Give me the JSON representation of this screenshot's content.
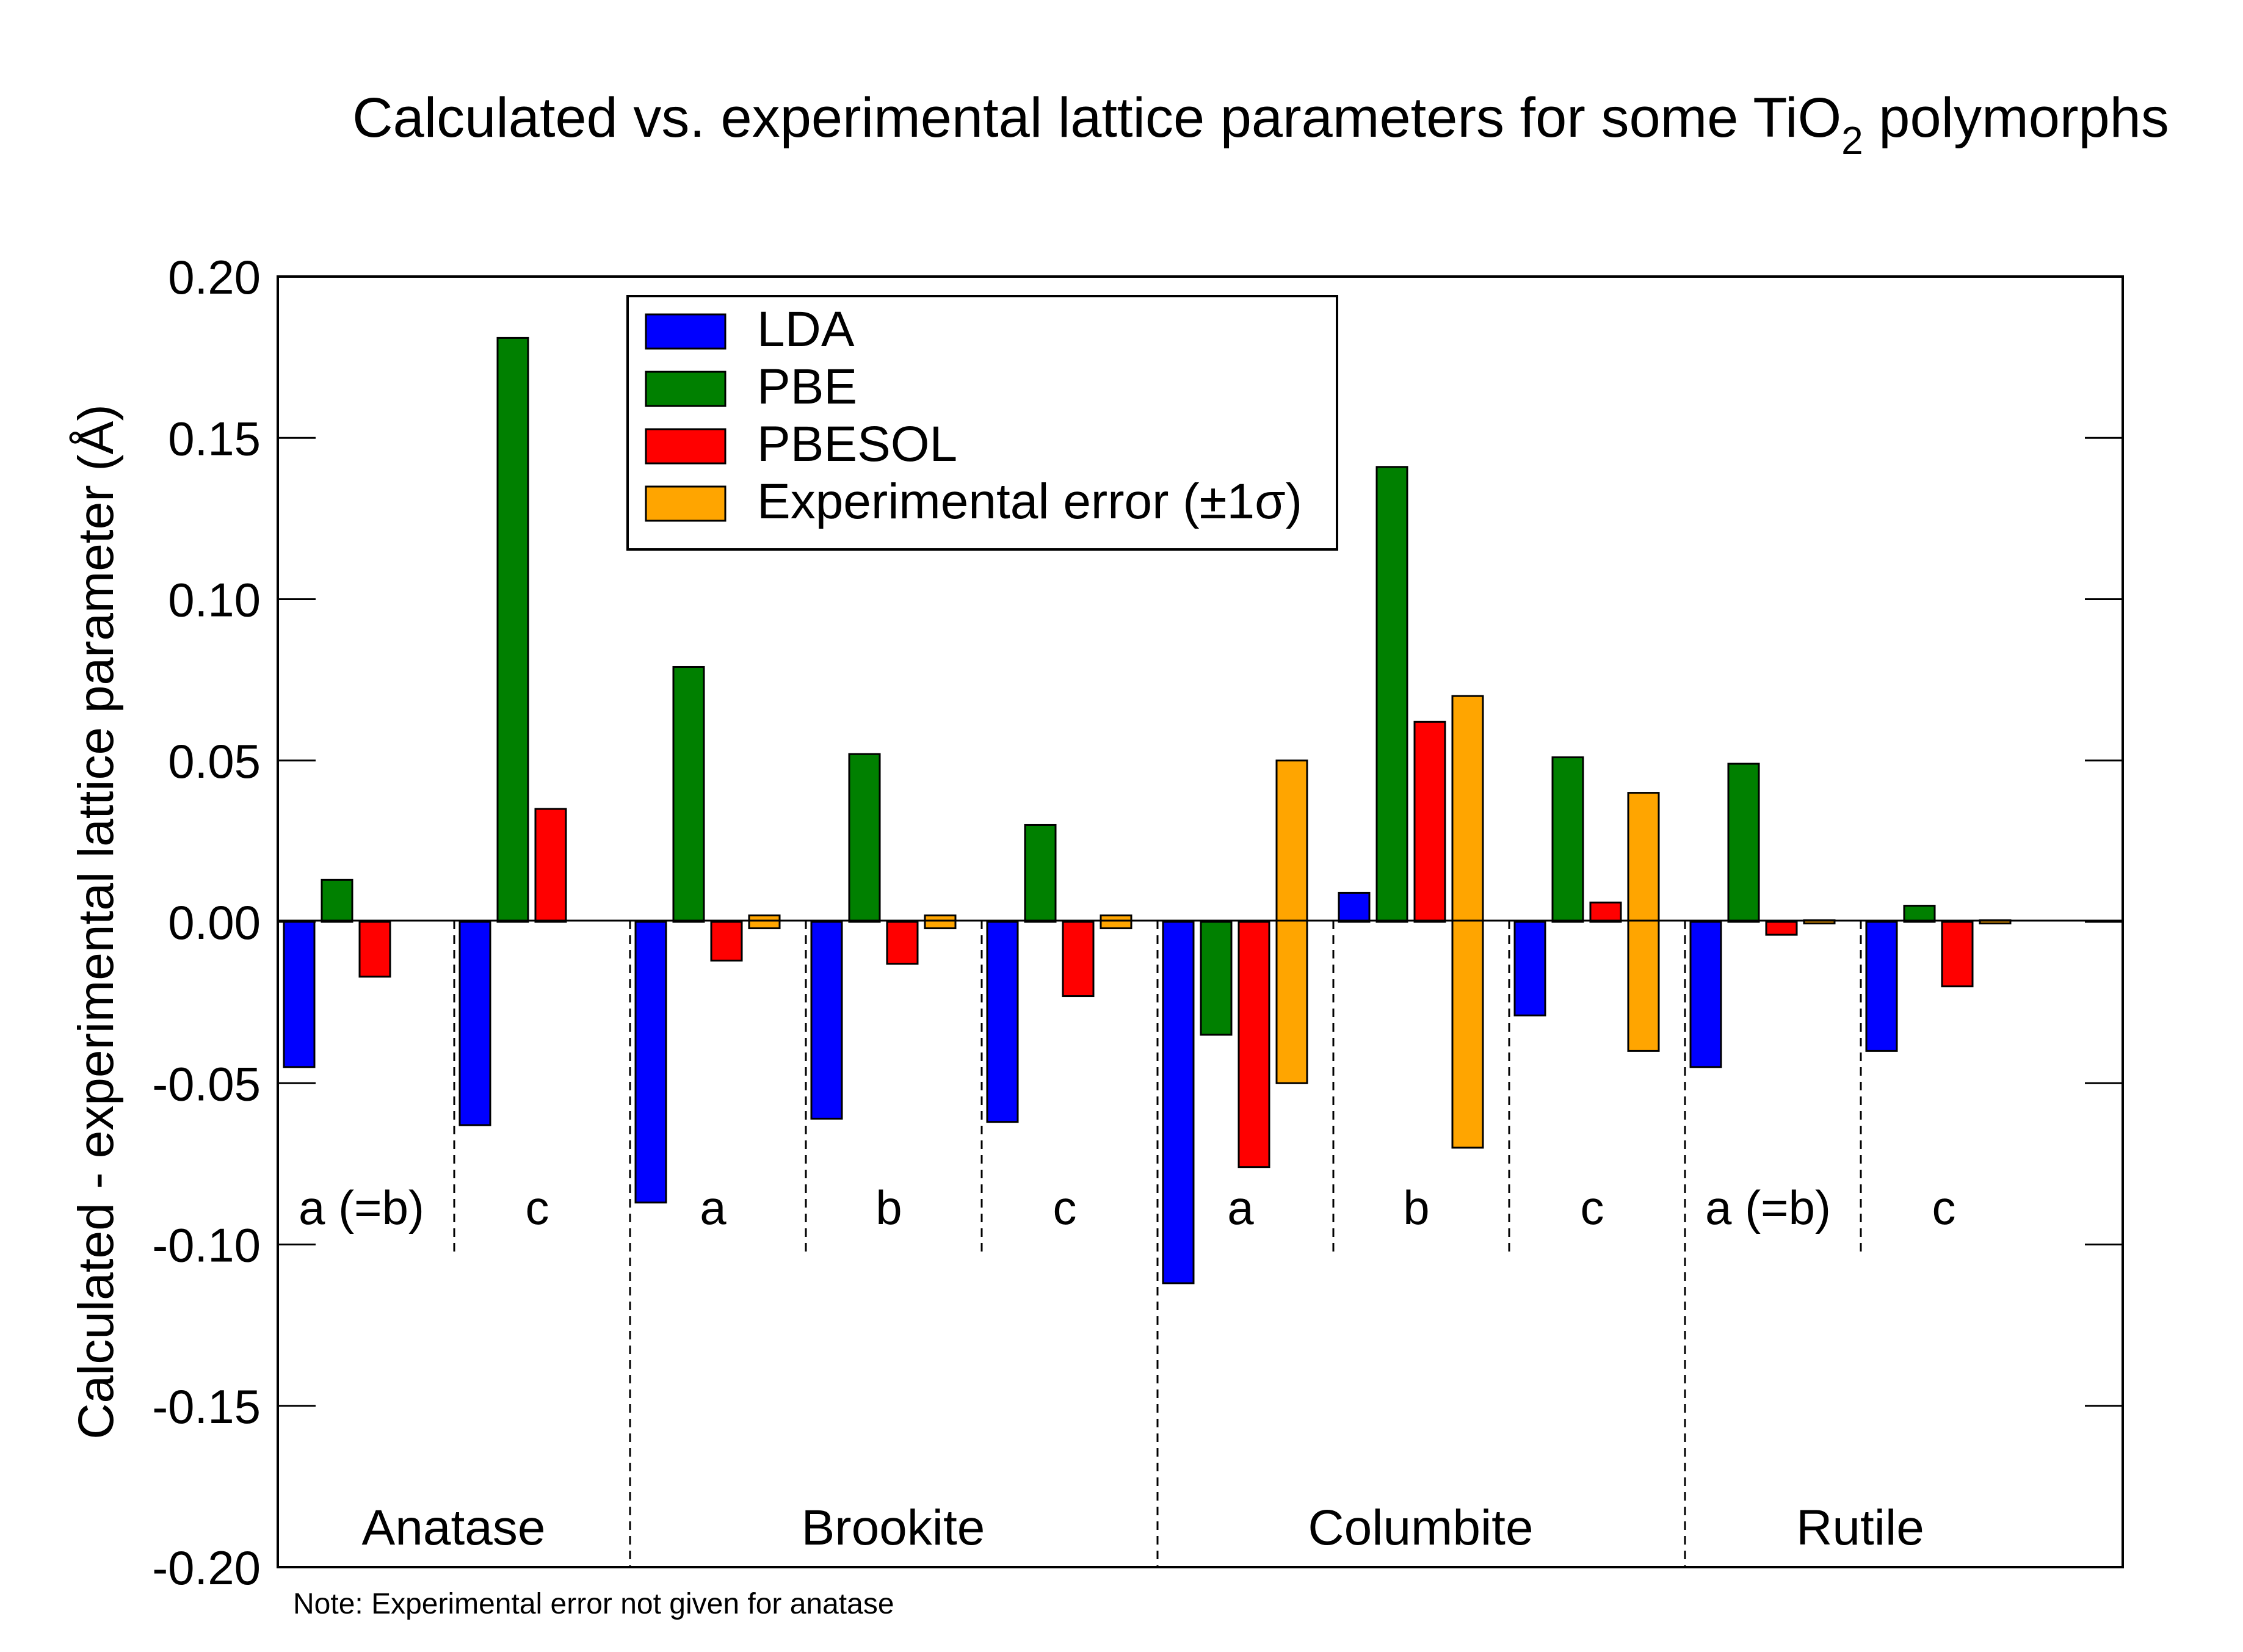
{
  "chart_data": {
    "type": "bar",
    "title_main": "Calculated vs. experimental lattice parameters for some TiO",
    "title_sub": "2",
    "title_end": " polymorphs",
    "ylabel": "Calculated - experimental lattice parameter (Å)",
    "ylim": [
      -0.2,
      0.2
    ],
    "yticks": [
      {
        "value": 0.2,
        "label": "0.20"
      },
      {
        "value": 0.15,
        "label": "0.15"
      },
      {
        "value": 0.1,
        "label": "0.10"
      },
      {
        "value": 0.05,
        "label": "0.05"
      },
      {
        "value": 0.0,
        "label": "0.00"
      },
      {
        "value": -0.05,
        "label": "-0.05"
      },
      {
        "value": -0.1,
        "label": "-0.10"
      },
      {
        "value": -0.15,
        "label": "-0.15"
      },
      {
        "value": -0.2,
        "label": "-0.20"
      }
    ],
    "series": [
      {
        "name": "LDA",
        "color": "#0000ff"
      },
      {
        "name": "PBE",
        "color": "#008000"
      },
      {
        "name": "PBESOL",
        "color": "#ff0000"
      },
      {
        "name": "Experimental error (±1σ)",
        "color": "#ffa500"
      }
    ],
    "groups": [
      {
        "name": "Anatase",
        "params": [
          {
            "label": "a (=b)",
            "values": [
              -0.045,
              0.013,
              -0.017,
              null
            ]
          },
          {
            "label": "c",
            "values": [
              -0.063,
              0.181,
              0.035,
              null
            ]
          }
        ]
      },
      {
        "name": "Brookite",
        "params": [
          {
            "label": "a",
            "values": [
              -0.087,
              0.079,
              -0.012,
              0.002
            ]
          },
          {
            "label": "b",
            "values": [
              -0.061,
              0.052,
              -0.013,
              0.002
            ]
          },
          {
            "label": "c",
            "values": [
              -0.062,
              0.03,
              -0.023,
              0.002
            ]
          }
        ]
      },
      {
        "name": "Columbite",
        "params": [
          {
            "label": "a",
            "values": [
              -0.112,
              -0.035,
              -0.076,
              0.05
            ]
          },
          {
            "label": "b",
            "values": [
              0.009,
              0.141,
              0.062,
              0.07
            ]
          },
          {
            "label": "c",
            "values": [
              -0.029,
              0.051,
              0.006,
              0.04
            ]
          }
        ]
      },
      {
        "name": "Rutile",
        "params": [
          {
            "label": "a (=b)",
            "values": [
              -0.045,
              0.049,
              -0.004,
              0.0005
            ]
          },
          {
            "label": "c",
            "values": [
              -0.04,
              0.005,
              -0.02,
              0.0005
            ]
          }
        ]
      }
    ],
    "error_series_symmetric": true,
    "legend_position": "top-left",
    "note": "Note: Experimental error not given for anatase"
  }
}
